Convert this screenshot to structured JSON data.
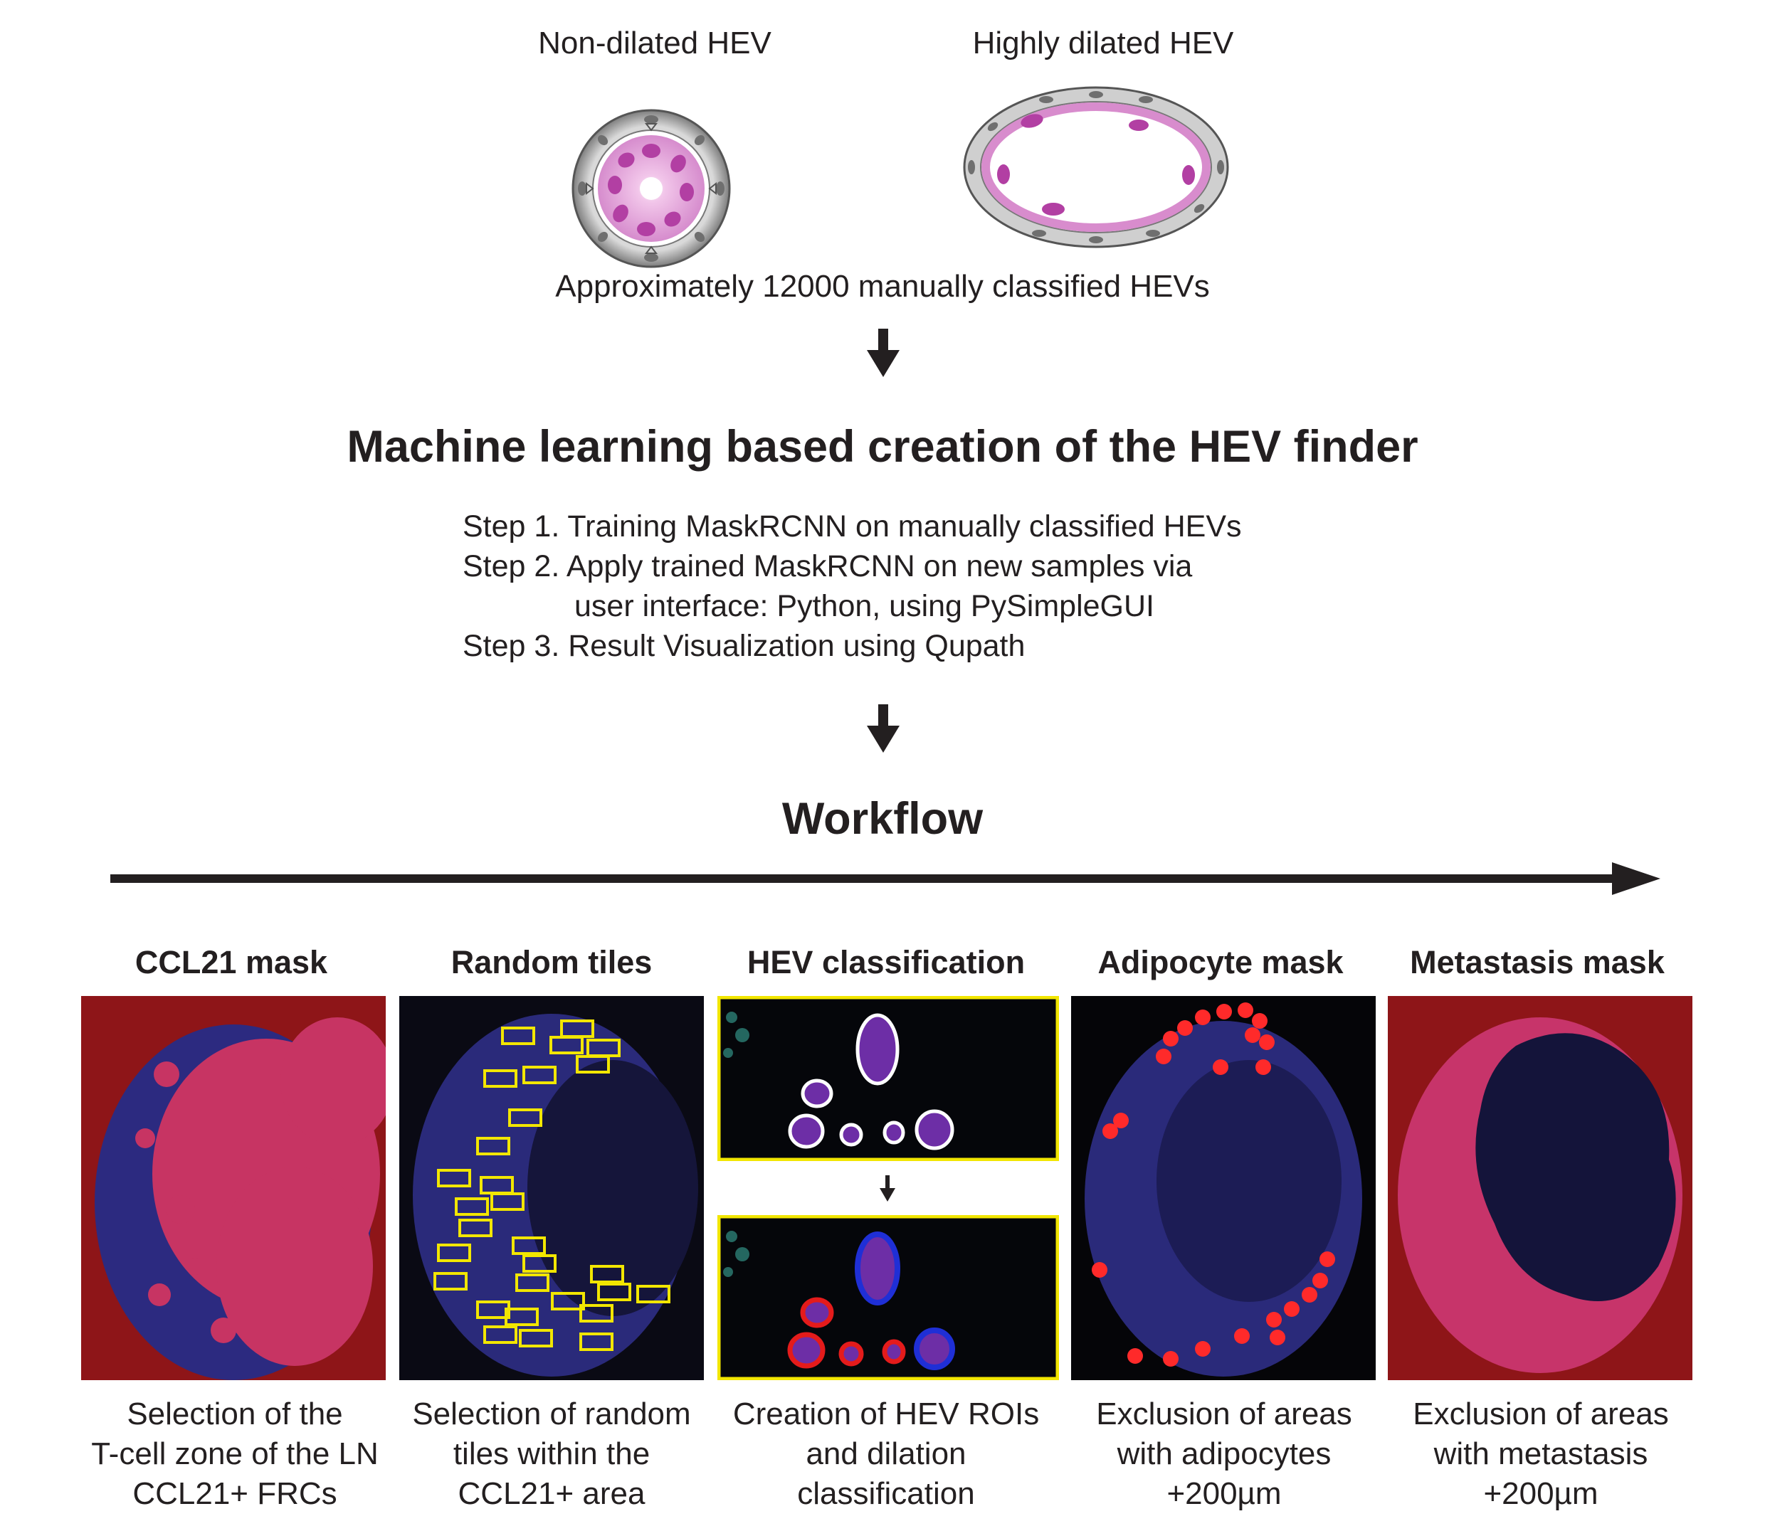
{
  "hev_types": {
    "non_dilated": "Non-dilated HEV",
    "highly_dilated": "Highly dilated HEV"
  },
  "training_set": "Approximately 12000 manually classified HEVs",
  "main_title": "Machine learning based creation of the HEV finder",
  "steps": [
    "Step 1. Training MaskRCNN on manually classified HEVs",
    "Step 2. Apply trained MaskRCNN on new samples via",
    "user interface: Python, using PySimpleGUI",
    "Step 3. Result Visualization using Qupath"
  ],
  "workflow_title": "Workflow",
  "panels": [
    {
      "title": "CCL21 mask",
      "caption": [
        "Selection of the",
        "T-cell zone of the LN",
        "CCL21+ FRCs"
      ]
    },
    {
      "title": "Random tiles",
      "caption": [
        "Selection of random",
        "tiles within the",
        "CCL21+ area"
      ]
    },
    {
      "title": "HEV classification",
      "caption": [
        "Creation of HEV ROIs",
        "and dilation",
        "classification"
      ]
    },
    {
      "title": "Adipocyte mask",
      "caption": [
        "Exclusion of areas",
        "with adipocytes",
        "+200µm"
      ]
    },
    {
      "title": "Metastasis mask",
      "caption": [
        "Exclusion of areas",
        "with metastasis",
        "+200µm"
      ]
    }
  ],
  "colors": {
    "text": "#231f20",
    "mask_red": "#8e1518",
    "tissue_blue": "#2a2a7a",
    "tile_yellow": "#f2e600",
    "roi_red": "#e41b1b",
    "roi_blue": "#1f2fd6",
    "hev_pink": "#c65bb5"
  }
}
